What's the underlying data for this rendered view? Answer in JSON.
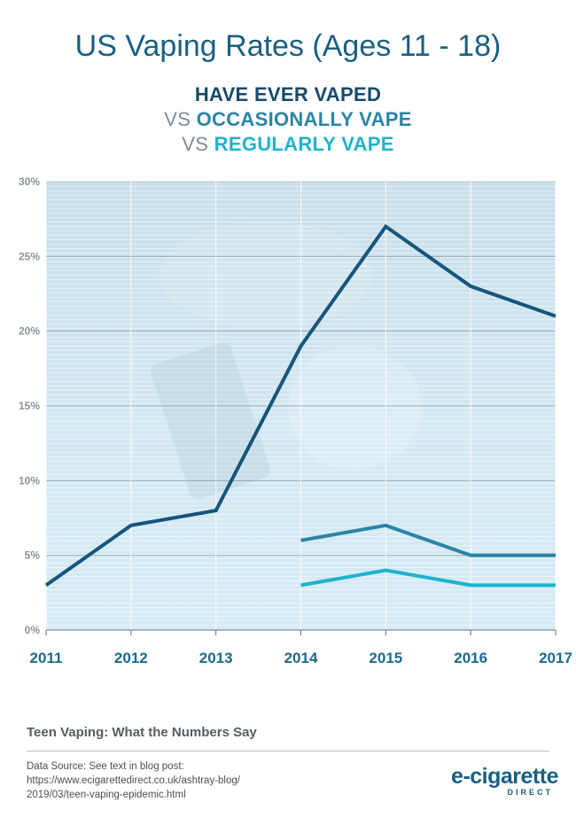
{
  "header": {
    "title": "US Vaping Rates (Ages 11 - 18)",
    "line1": "HAVE EVER VAPED",
    "vs": "VS",
    "line2": "OCCASIONALLY VAPE",
    "line3": "REGULARLY VAPE"
  },
  "chart_data": {
    "type": "line",
    "title": "US Vaping Rates (Ages 11 - 18)",
    "subtitle": "HAVE EVER VAPED VS OCCASIONALLY VAPE VS REGULARLY VAPE",
    "x": [
      "2011",
      "2012",
      "2013",
      "2014",
      "2015",
      "2016",
      "2017"
    ],
    "yticks": [
      "0%",
      "5%",
      "10%",
      "15%",
      "20%",
      "25%",
      "30%"
    ],
    "ylim": [
      0,
      30
    ],
    "xlabel": "",
    "ylabel": "",
    "grid": true,
    "series": [
      {
        "name": "HAVE EVER VAPED",
        "color": "#16557c",
        "values": [
          3,
          7,
          8,
          19,
          27,
          23,
          21
        ]
      },
      {
        "name": "OCCASIONALLY VAPE",
        "color": "#2b84a6",
        "values": [
          null,
          null,
          null,
          6,
          7,
          5,
          5
        ]
      },
      {
        "name": "REGULARLY VAPE",
        "color": "#1eb3cc",
        "values": [
          null,
          null,
          null,
          3,
          4,
          3,
          3
        ]
      }
    ]
  },
  "footer": {
    "article_title": "Teen Vaping: What the Numbers Say",
    "source_lines": [
      "Data Source: See text in blog post:",
      "https://www.ecigarettedirect.co.uk/ashtray-blog/",
      "2019/03/teen-vaping-epidemic.html"
    ],
    "logo_main": "e-cigarette",
    "logo_sub": "DIRECT"
  }
}
